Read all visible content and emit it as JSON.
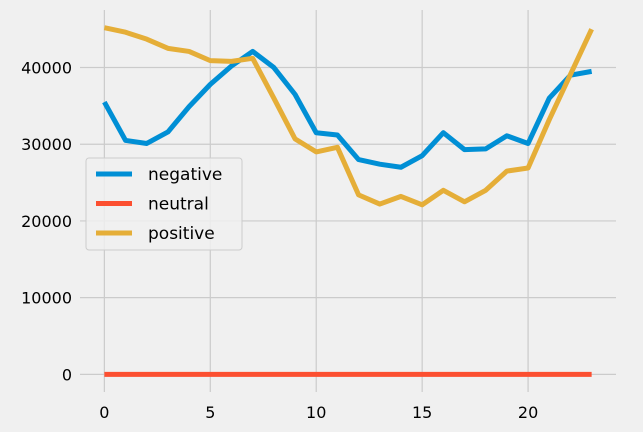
{
  "chart_data": {
    "type": "line",
    "title": "",
    "xlabel": "",
    "ylabel": "",
    "x": [
      0,
      1,
      2,
      3,
      4,
      5,
      6,
      7,
      8,
      9,
      10,
      11,
      12,
      13,
      14,
      15,
      16,
      17,
      18,
      19,
      20,
      21,
      22,
      23
    ],
    "xlim": [
      -1.15,
      24.15
    ],
    "ylim": [
      -2300,
      47500
    ],
    "xticks": [
      0,
      5,
      10,
      15,
      20
    ],
    "yticks": [
      0,
      10000,
      20000,
      30000,
      40000
    ],
    "grid": true,
    "legend_position": "center-left",
    "series": [
      {
        "name": "negative",
        "color": "#008fd5",
        "values": [
          35500,
          30500,
          30100,
          31600,
          34900,
          37800,
          40200,
          42100,
          40000,
          36500,
          31500,
          31200,
          28000,
          27400,
          27000,
          28500,
          31500,
          29300,
          29400,
          31100,
          30100,
          36000,
          39000,
          39500
        ]
      },
      {
        "name": "neutral",
        "color": "#fc4f30",
        "values": [
          0,
          0,
          0,
          0,
          0,
          0,
          0,
          0,
          0,
          0,
          0,
          0,
          0,
          0,
          0,
          0,
          0,
          0,
          0,
          0,
          0,
          0,
          0,
          0
        ]
      },
      {
        "name": "positive",
        "color": "#e5ae38",
        "values": [
          45200,
          44600,
          43700,
          42500,
          42100,
          40900,
          40800,
          41200,
          36000,
          30700,
          29000,
          29600,
          23400,
          22200,
          23200,
          22100,
          24000,
          22500,
          24000,
          26500,
          26900,
          33200,
          39100,
          45000
        ]
      }
    ]
  }
}
